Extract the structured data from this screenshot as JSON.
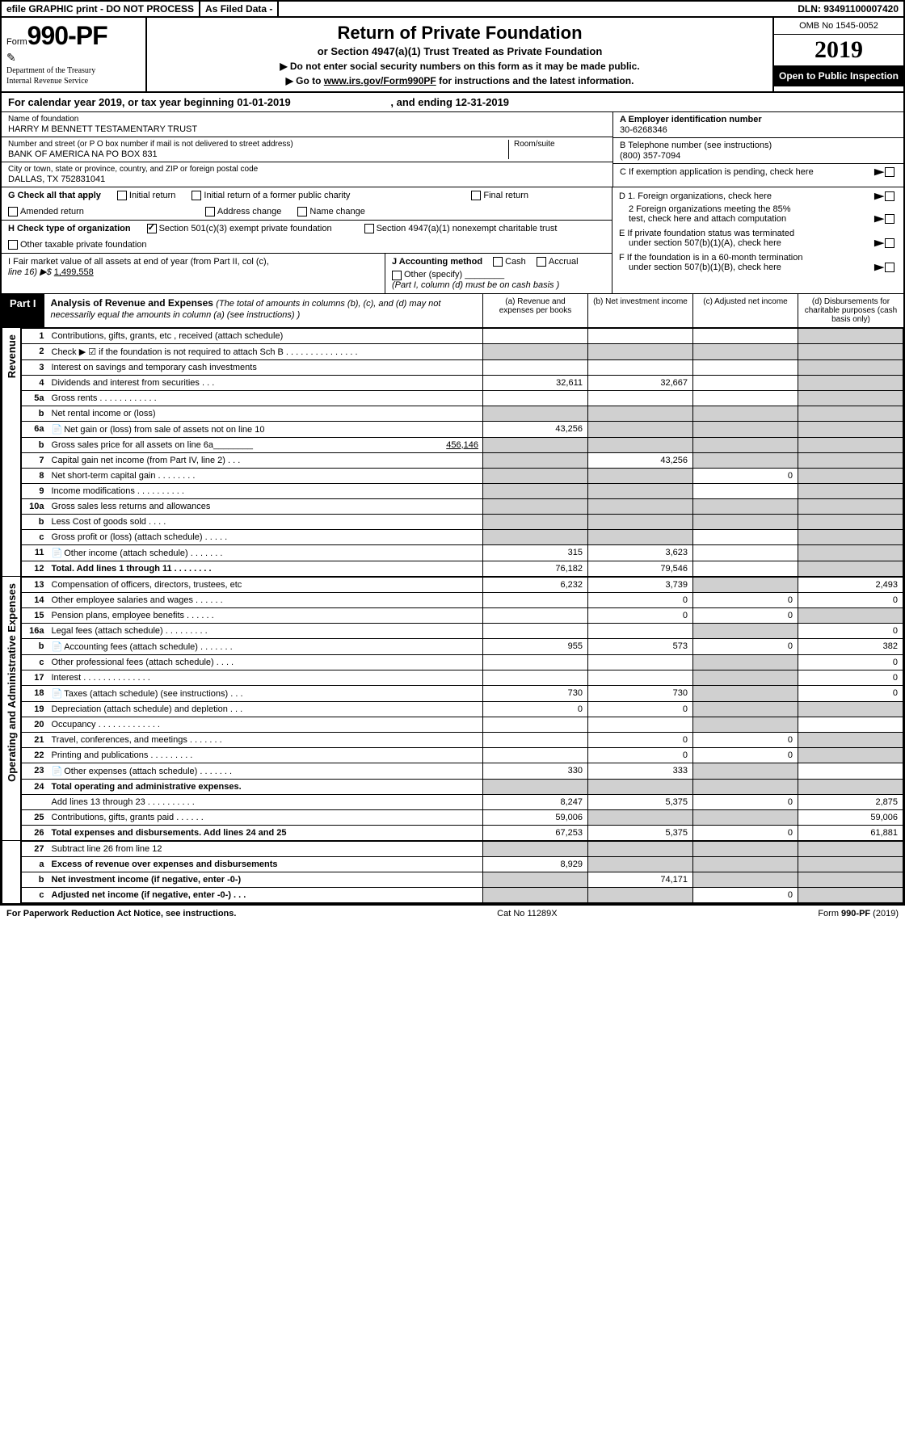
{
  "topbar": {
    "efile": "efile GRAPHIC print - DO NOT PROCESS",
    "asfiled": "As Filed Data -",
    "dln": "DLN: 93491100007420"
  },
  "header": {
    "form_prefix": "Form",
    "form_num": "990-PF",
    "dept1": "Department of the Treasury",
    "dept2": "Internal Revenue Service",
    "title": "Return of Private Foundation",
    "subtitle": "or Section 4947(a)(1) Trust Treated as Private Foundation",
    "note1": "▶ Do not enter social security numbers on this form as it may be made public.",
    "note2_pre": "▶ Go to ",
    "note2_link": "www.irs.gov/Form990PF",
    "note2_post": " for instructions and the latest information.",
    "omb": "OMB No 1545-0052",
    "year": "2019",
    "open": "Open to Public Inspection"
  },
  "cal": {
    "text": "For calendar year 2019, or tax year beginning 01-01-2019",
    "end_label": ", and ending ",
    "end": "12-31-2019"
  },
  "info": {
    "name_label": "Name of foundation",
    "name": "HARRY M BENNETT TESTAMENTARY TRUST",
    "addr_label": "Number and street (or P O  box number if mail is not delivered to street address)",
    "addr": "BANK OF AMERICA NA PO BOX 831",
    "room_label": "Room/suite",
    "city_label": "City or town, state or province, country, and ZIP or foreign postal code",
    "city": "DALLAS, TX  752831041",
    "a_label": "A Employer identification number",
    "a_val": "30-6268346",
    "b_label": "B Telephone number (see instructions)",
    "b_val": "(800) 357-7094",
    "c_label": "C If exemption application is pending, check here"
  },
  "g": {
    "label": "G Check all that apply",
    "o1": "Initial return",
    "o2": "Initial return of a former public charity",
    "o3": "Final return",
    "o4": "Amended return",
    "o5": "Address change",
    "o6": "Name change"
  },
  "d": {
    "d1": "D 1. Foreign organizations, check here",
    "d2a": "2 Foreign organizations meeting the 85%",
    "d2b": "test, check here and attach computation",
    "e1": "E  If private foundation status was terminated",
    "e2": "under section 507(b)(1)(A), check here",
    "f1": "F  If the foundation is in a 60-month termination",
    "f2": "under section 507(b)(1)(B), check here"
  },
  "h": {
    "label": "H Check type of organization",
    "o1": "Section 501(c)(3) exempt private foundation",
    "o2": "Section 4947(a)(1) nonexempt charitable trust",
    "o3": "Other taxable private foundation"
  },
  "i": {
    "label": "I Fair market value of all assets at end of year (from Part II, col  (c),",
    "line": "line 16) ▶$ ",
    "val": "1,499,558"
  },
  "j": {
    "label": "J Accounting method",
    "o1": "Cash",
    "o2": "Accrual",
    "o3": "Other (specify)",
    "note": "(Part I, column (d) must be on cash basis )"
  },
  "part1": {
    "label": "Part I",
    "title": "Analysis of Revenue and Expenses",
    "sub": "(The total of amounts in columns (b), (c), and (d) may not necessarily equal the amounts in column (a) (see instructions) )",
    "col_a": "(a)    Revenue and expenses per books",
    "col_b": "(b)    Net investment income",
    "col_c": "(c)    Adjusted net income",
    "col_d": "(d)    Disbursements for charitable purposes (cash basis only)"
  },
  "side": {
    "rev": "Revenue",
    "exp": "Operating and Administrative Expenses"
  },
  "rows": {
    "r1": {
      "n": "1",
      "d": "Contributions, gifts, grants, etc , received (attach schedule)"
    },
    "r2": {
      "n": "2",
      "d": "Check ▶ ☑ if the foundation is not required to attach Sch  B   .  .  .  .  .  .  .  .  .  .  .  .  .  .  ."
    },
    "r3": {
      "n": "3",
      "d": "Interest on savings and temporary cash investments"
    },
    "r4": {
      "n": "4",
      "d": "Dividends and interest from securities   .  .  .",
      "a": "32,611",
      "b": "32,667"
    },
    "r5a": {
      "n": "5a",
      "d": "Gross rents   .  .  .  .  .  .  .  .  .  .  .  ."
    },
    "r5b": {
      "n": "b",
      "d": "Net rental income or (loss)  "
    },
    "r6a": {
      "n": "6a",
      "d": "Net gain or (loss) from sale of assets not on line 10",
      "a": "43,256"
    },
    "r6b": {
      "n": "b",
      "d": "Gross sales price for all assets on line 6a________",
      "v": "456,146"
    },
    "r7": {
      "n": "7",
      "d": "Capital gain net income (from Part IV, line 2)   .  .  .",
      "b": "43,256"
    },
    "r8": {
      "n": "8",
      "d": "Net short-term capital gain   .  .  .  .  .  .  .  .",
      "c": "0"
    },
    "r9": {
      "n": "9",
      "d": "Income modifications  .  .  .  .  .  .  .  .  .  ."
    },
    "r10a": {
      "n": "10a",
      "d": "Gross sales less returns and allowances "
    },
    "r10b": {
      "n": "b",
      "d": "Less  Cost of goods sold   .  .  .  . "
    },
    "r10c": {
      "n": "c",
      "d": "Gross profit or (loss) (attach schedule)   .  .  .  .  ."
    },
    "r11": {
      "n": "11",
      "d": "Other income (attach schedule)   .  .  .  .  .  .  .",
      "a": "315",
      "b": "3,623"
    },
    "r12": {
      "n": "12",
      "d": "Total. Add lines 1 through 11   .  .  .  .  .  .  .  .",
      "a": "76,182",
      "b": "79,546",
      "bold": true
    },
    "r13": {
      "n": "13",
      "d": "Compensation of officers, directors, trustees, etc",
      "a": "6,232",
      "b": "3,739",
      "dd": "2,493"
    },
    "r14": {
      "n": "14",
      "d": "Other employee salaries and wages   .  .  .  .  .  .",
      "b": "0",
      "c": "0",
      "dd": "0"
    },
    "r15": {
      "n": "15",
      "d": "Pension plans, employee benefits   .  .  .  .  .  .",
      "b": "0",
      "c": "0"
    },
    "r16a": {
      "n": "16a",
      "d": "Legal fees (attach schedule)  .  .  .  .  .  .  .  .  .",
      "dd": "0"
    },
    "r16b": {
      "n": "b",
      "d": "Accounting fees (attach schedule)  .  .  .  .  .  .  .",
      "a": "955",
      "b": "573",
      "c": "0",
      "dd": "382"
    },
    "r16c": {
      "n": "c",
      "d": "Other professional fees (attach schedule)   .  .  .  .",
      "dd": "0"
    },
    "r17": {
      "n": "17",
      "d": "Interest  .  .  .  .  .  .  .  .  .  .  .  .  .  .",
      "dd": "0"
    },
    "r18": {
      "n": "18",
      "d": "Taxes (attach schedule) (see instructions)    .  .  .",
      "a": "730",
      "b": "730",
      "dd": "0"
    },
    "r19": {
      "n": "19",
      "d": "Depreciation (attach schedule) and depletion   .  .  .",
      "a": "0",
      "b": "0"
    },
    "r20": {
      "n": "20",
      "d": "Occupancy   .  .  .  .  .  .  .  .  .  .  .  .  ."
    },
    "r21": {
      "n": "21",
      "d": "Travel, conferences, and meetings  .  .  .  .  .  .  .",
      "b": "0",
      "c": "0"
    },
    "r22": {
      "n": "22",
      "d": "Printing and publications  .  .  .  .  .  .  .  .  .",
      "b": "0",
      "c": "0"
    },
    "r23": {
      "n": "23",
      "d": "Other expenses (attach schedule)  .  .  .  .  .  .  .",
      "a": "330",
      "b": "333"
    },
    "r24": {
      "n": "24",
      "d": "Total operating and administrative expenses.",
      "bold": true
    },
    "r24b": {
      "d": "Add lines 13 through 23   .  .  .  .  .  .  .  .  .  .",
      "a": "8,247",
      "b": "5,375",
      "c": "0",
      "dd": "2,875"
    },
    "r25": {
      "n": "25",
      "d": "Contributions, gifts, grants paid    .  .  .  .  .  .",
      "a": "59,006",
      "dd": "59,006"
    },
    "r26": {
      "n": "26",
      "d": "Total expenses and disbursements. Add lines 24 and 25",
      "a": "67,253",
      "b": "5,375",
      "c": "0",
      "dd": "61,881",
      "bold": true
    },
    "r27": {
      "n": "27",
      "d": "Subtract line 26 from line 12"
    },
    "r27a": {
      "n": "a",
      "d": "Excess of revenue over expenses and disbursements",
      "a": "8,929",
      "bold": true
    },
    "r27b": {
      "n": "b",
      "d": "Net investment income (if negative, enter -0-)",
      "b": "74,171",
      "bold": true
    },
    "r27c": {
      "n": "c",
      "d": "Adjusted net income (if negative, enter -0-)   .  .  .",
      "c": "0",
      "bold": true
    }
  },
  "footer": {
    "left": "For Paperwork Reduction Act Notice, see instructions.",
    "mid": "Cat  No  11289X",
    "right": "Form 990-PF (2019)"
  }
}
